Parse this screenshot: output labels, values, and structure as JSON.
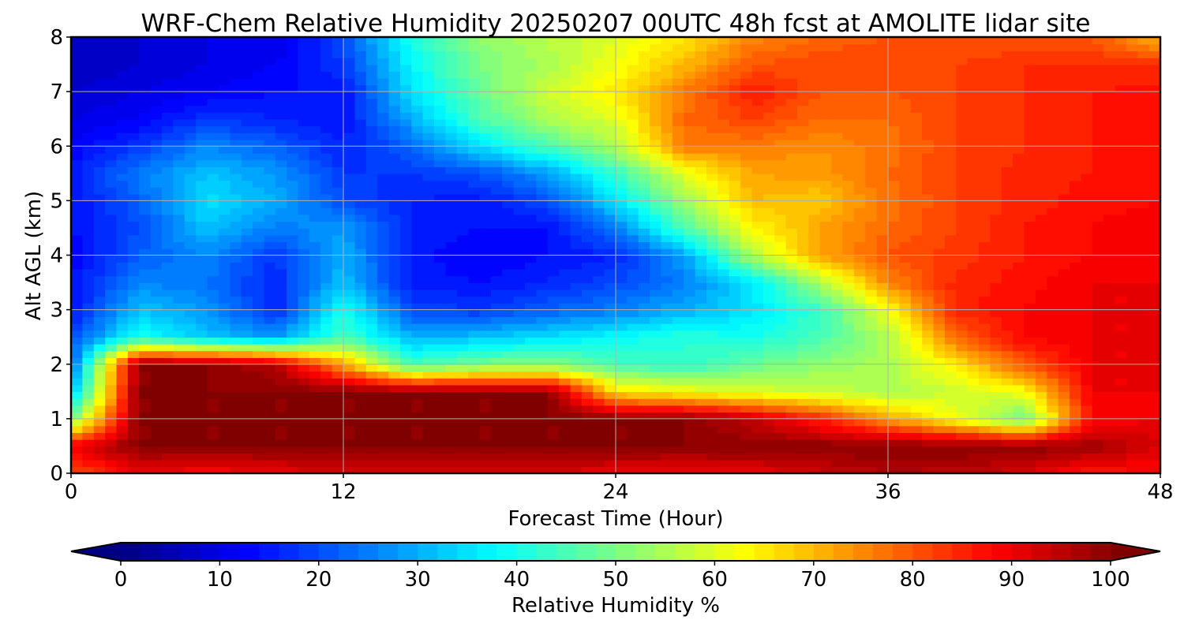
{
  "chart_data": {
    "type": "heatmap",
    "title": "WRF-Chem Relative Humidity 20250207 00UTC 48h fcst at AMOLITE lidar site",
    "xlabel": "Forecast Time (Hour)",
    "ylabel": "Alt AGL (km)",
    "xlim": [
      0,
      48
    ],
    "ylim": [
      0,
      8
    ],
    "xticks": [
      "0",
      "12",
      "24",
      "36",
      "48"
    ],
    "yticks": [
      "0",
      "1",
      "2",
      "3",
      "4",
      "5",
      "6",
      "7",
      "8"
    ],
    "grid": true,
    "colormap": "jet",
    "colorbar": {
      "label": "Relative Humidity %",
      "range": [
        0,
        100
      ],
      "ticks": [
        "0",
        "10",
        "20",
        "30",
        "40",
        "50",
        "60",
        "70",
        "80",
        "90",
        "100"
      ],
      "extend": "both",
      "orientation": "horizontal"
    },
    "x_hours": [
      0,
      3,
      6,
      9,
      12,
      15,
      18,
      21,
      24,
      27,
      30,
      33,
      36,
      39,
      42,
      45,
      48
    ],
    "altitudes_km": [
      0,
      0.5,
      1,
      1.5,
      2,
      2.5,
      3,
      3.5,
      4,
      4.5,
      5,
      5.5,
      6,
      6.5,
      7,
      7.5,
      8
    ],
    "rh_percent": [
      [
        80,
        90,
        88,
        90,
        93,
        92,
        93,
        92,
        90,
        89,
        90,
        93,
        96,
        95,
        92,
        86,
        88
      ],
      [
        90,
        100,
        100,
        100,
        100,
        100,
        100,
        100,
        100,
        100,
        100,
        100,
        100,
        100,
        100,
        98,
        92
      ],
      [
        50,
        100,
        100,
        100,
        100,
        100,
        100,
        100,
        100,
        100,
        94,
        85,
        73,
        62,
        48,
        88,
        90
      ],
      [
        30,
        100,
        100,
        100,
        100,
        100,
        100,
        100,
        66,
        63,
        60,
        58,
        55,
        58,
        62,
        90,
        90
      ],
      [
        22,
        100,
        100,
        96,
        72,
        45,
        50,
        52,
        45,
        42,
        48,
        52,
        55,
        65,
        80,
        90,
        90
      ],
      [
        20,
        40,
        32,
        28,
        45,
        30,
        32,
        35,
        38,
        42,
        40,
        45,
        55,
        78,
        88,
        90,
        90
      ],
      [
        14,
        32,
        28,
        16,
        40,
        20,
        18,
        22,
        25,
        30,
        35,
        43,
        62,
        85,
        88,
        90,
        90
      ],
      [
        14,
        26,
        24,
        16,
        32,
        15,
        14,
        16,
        20,
        25,
        35,
        55,
        75,
        85,
        87,
        90,
        90
      ],
      [
        12,
        22,
        26,
        18,
        30,
        15,
        12,
        14,
        16,
        28,
        55,
        72,
        80,
        83,
        86,
        88,
        90
      ],
      [
        14,
        20,
        32,
        25,
        28,
        16,
        14,
        14,
        25,
        45,
        63,
        72,
        78,
        82,
        86,
        88,
        90
      ],
      [
        14,
        22,
        35,
        30,
        20,
        16,
        15,
        20,
        35,
        53,
        70,
        68,
        77,
        82,
        85,
        87,
        88
      ],
      [
        15,
        25,
        32,
        28,
        18,
        18,
        20,
        28,
        43,
        60,
        72,
        73,
        78,
        82,
        85,
        86,
        88
      ],
      [
        12,
        18,
        26,
        22,
        16,
        22,
        35,
        45,
        55,
        76,
        76,
        74,
        77,
        82,
        84,
        86,
        88
      ],
      [
        10,
        12,
        18,
        16,
        14,
        30,
        45,
        55,
        60,
        78,
        82,
        78,
        78,
        82,
        84,
        86,
        88
      ],
      [
        8,
        10,
        12,
        14,
        14,
        35,
        48,
        58,
        65,
        76,
        86,
        80,
        80,
        82,
        84,
        86,
        87
      ],
      [
        6,
        8,
        10,
        12,
        18,
        38,
        50,
        55,
        62,
        70,
        80,
        82,
        82,
        82,
        84,
        84,
        84
      ],
      [
        8,
        8,
        10,
        10,
        20,
        40,
        52,
        56,
        60,
        65,
        75,
        78,
        80,
        80,
        80,
        80,
        70
      ]
    ]
  }
}
